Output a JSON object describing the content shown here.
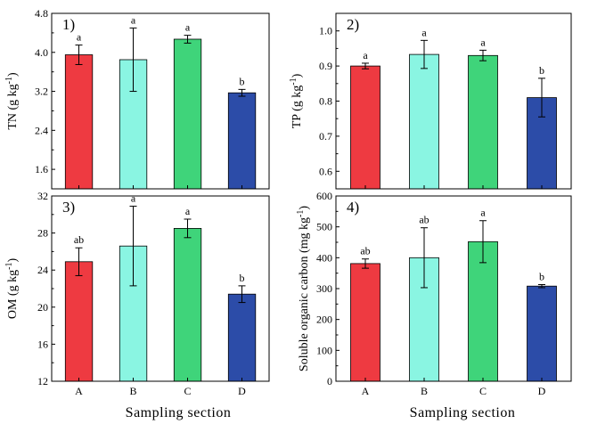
{
  "figure": {
    "xlabel": "Sampling section"
  },
  "chart_data": [
    {
      "type": "bar",
      "panel_label": "1)",
      "ylabel_main": "TN (g kg",
      "ylabel_sup": "-1",
      "ylabel_close": ")",
      "categories": [
        "A",
        "B",
        "C",
        "D"
      ],
      "values": [
        3.95,
        3.85,
        4.27,
        3.17
      ],
      "errors": [
        0.2,
        0.65,
        0.08,
        0.07
      ],
      "significance": [
        "a",
        "a",
        "a",
        "b"
      ],
      "colors": [
        "#ee3a41",
        "#8af5e2",
        "#3fd47a",
        "#2c4ca8"
      ],
      "ylim": [
        1.2,
        4.8
      ],
      "yticks": [
        "1.6",
        "2.4",
        "3.2",
        "4.0",
        "4.8"
      ],
      "xlabel": ""
    },
    {
      "type": "bar",
      "panel_label": "2)",
      "ylabel_main": "TP (g kg",
      "ylabel_sup": "-1",
      "ylabel_close": ")",
      "categories": [
        "A",
        "B",
        "C",
        "D"
      ],
      "values": [
        0.9,
        0.933,
        0.93,
        0.81
      ],
      "errors": [
        0.008,
        0.04,
        0.015,
        0.055
      ],
      "significance": [
        "a",
        "a",
        "a",
        "b"
      ],
      "colors": [
        "#ee3a41",
        "#8af5e2",
        "#3fd47a",
        "#2c4ca8"
      ],
      "ylim": [
        0.55,
        1.05
      ],
      "yticks": [
        "0.6",
        "0.7",
        "0.8",
        "0.9",
        "1.0"
      ],
      "xlabel": ""
    },
    {
      "type": "bar",
      "panel_label": "3)",
      "ylabel_main": "OM (g kg",
      "ylabel_sup": "-1",
      "ylabel_close": ")",
      "categories": [
        "A",
        "B",
        "C",
        "D"
      ],
      "values": [
        24.9,
        26.6,
        28.5,
        21.4
      ],
      "errors": [
        1.5,
        4.3,
        1.0,
        0.9
      ],
      "significance": [
        "ab",
        "a",
        "a",
        "b"
      ],
      "colors": [
        "#ee3a41",
        "#8af5e2",
        "#3fd47a",
        "#2c4ca8"
      ],
      "ylim": [
        12,
        32
      ],
      "yticks": [
        "12",
        "16",
        "20",
        "24",
        "28",
        "32"
      ],
      "xticks": [
        "A",
        "B",
        "C",
        "D"
      ],
      "xlabel": "Sampling section"
    },
    {
      "type": "bar",
      "panel_label": "4)",
      "ylabel_main": "Soluble organic carbon (mg kg",
      "ylabel_sup": "-1",
      "ylabel_close": ")",
      "categories": [
        "A",
        "B",
        "C",
        "D"
      ],
      "values": [
        381,
        400,
        452,
        308
      ],
      "errors": [
        15,
        97,
        68,
        5
      ],
      "significance": [
        "ab",
        "ab",
        "a",
        "b"
      ],
      "colors": [
        "#ee3a41",
        "#8af5e2",
        "#3fd47a",
        "#2c4ca8"
      ],
      "ylim": [
        0,
        600
      ],
      "yticks": [
        "0",
        "100",
        "200",
        "300",
        "400",
        "500",
        "600"
      ],
      "xticks": [
        "A",
        "B",
        "C",
        "D"
      ],
      "xlabel": "Sampling section"
    }
  ]
}
